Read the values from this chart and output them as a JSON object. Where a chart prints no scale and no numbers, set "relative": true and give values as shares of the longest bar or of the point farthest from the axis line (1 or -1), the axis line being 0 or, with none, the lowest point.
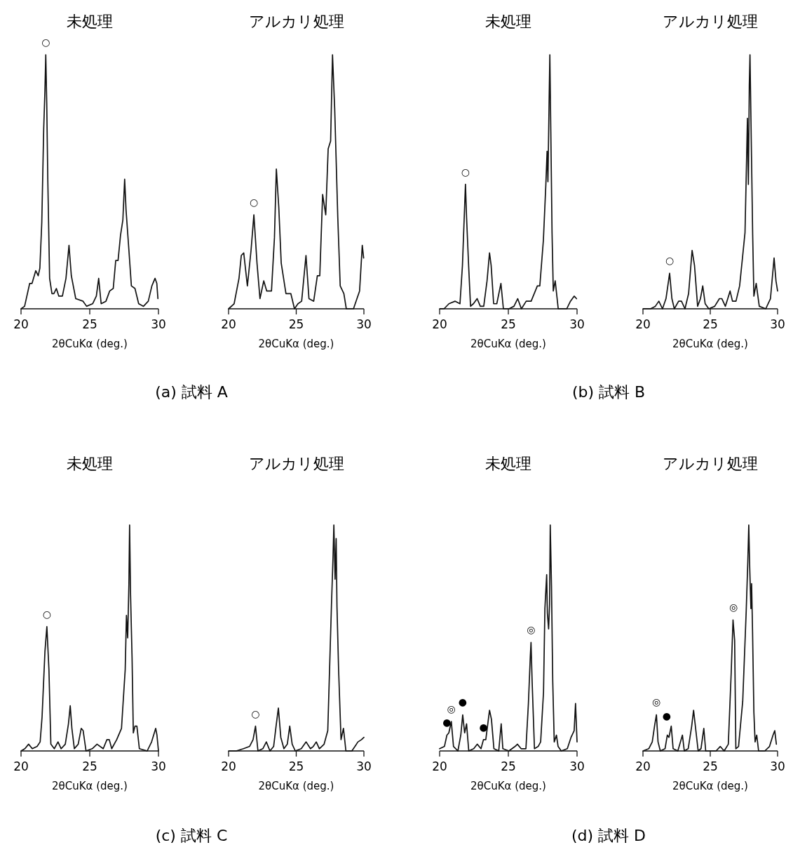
{
  "chart_data": [
    {
      "type": "line",
      "relative": true,
      "title": "未処理",
      "xlabel": "2θCuKα (deg.)",
      "xlim": [
        20,
        30
      ],
      "xticks": [
        20,
        25,
        30
      ],
      "x": [
        20,
        20.26,
        20.63,
        20.8,
        21.07,
        21.25,
        21.37,
        21.51,
        21.65,
        21.74,
        21.8,
        21.87,
        21.95,
        22.08,
        22.25,
        22.39,
        22.57,
        22.75,
        23.01,
        23.27,
        23.49,
        23.66,
        23.98,
        24.51,
        24.77,
        25.21,
        25.48,
        25.65,
        25.83,
        26.18,
        26.45,
        26.71,
        26.89,
        27.06,
        27.24,
        27.41,
        27.54,
        27.64,
        27.85,
        28.03,
        28.29,
        28.56,
        28.91,
        29.26,
        29.52,
        29.75,
        29.88,
        29.96
      ],
      "values": [
        0,
        0.01,
        0.1,
        0.1,
        0.15,
        0.13,
        0.16,
        0.34,
        0.71,
        0.86,
        1,
        0.81,
        0.5,
        0.12,
        0.06,
        0.06,
        0.08,
        0.05,
        0.05,
        0.12,
        0.25,
        0.13,
        0.04,
        0.03,
        0.01,
        0.02,
        0.05,
        0.12,
        0.02,
        0.03,
        0.07,
        0.08,
        0.19,
        0.19,
        0.29,
        0.35,
        0.51,
        0.39,
        0.23,
        0.09,
        0.08,
        0.02,
        0.01,
        0.03,
        0.09,
        0.12,
        0.1,
        0.04
      ],
      "annotations": [
        "(a) 試料 A",
        {
          "text": "○",
          "x": 21.8,
          "y": 1
        }
      ]
    },
    {
      "type": "line",
      "relative": true,
      "title": "アルカリ処理",
      "xlabel": "2θCuKα (deg.)",
      "xlim": [
        20,
        30
      ],
      "xticks": [
        20,
        25,
        30
      ],
      "x": [
        20,
        20.41,
        20.77,
        20.94,
        21.12,
        21.39,
        21.66,
        21.87,
        22.1,
        22.32,
        22.6,
        22.82,
        23.17,
        23.39,
        23.53,
        23.71,
        23.89,
        24.24,
        24.6,
        24.87,
        25.13,
        25.4,
        25.72,
        25.94,
        26.29,
        26.56,
        26.74,
        26.95,
        27.18,
        27.36,
        27.54,
        27.68,
        27.84,
        28.07,
        28.25,
        28.52,
        28.7,
        29.23,
        29.68,
        29.88,
        29.98
      ],
      "values": [
        0,
        0.02,
        0.12,
        0.21,
        0.22,
        0.09,
        0.23,
        0.37,
        0.18,
        0.04,
        0.11,
        0.07,
        0.07,
        0.28,
        0.55,
        0.4,
        0.18,
        0.06,
        0.06,
        0,
        0.02,
        0.03,
        0.21,
        0.04,
        0.03,
        0.13,
        0.13,
        0.45,
        0.37,
        0.63,
        0.66,
        1,
        0.79,
        0.36,
        0.09,
        0.06,
        0,
        0,
        0.07,
        0.25,
        0.2
      ],
      "annotations": [
        {
          "text": "○",
          "x": 21.87,
          "y": 0.37
        }
      ]
    },
    {
      "type": "line",
      "relative": true,
      "title": "未処理",
      "xlabel": "2θCuKα (deg.)",
      "xlim": [
        20,
        30
      ],
      "xticks": [
        20,
        25,
        30
      ],
      "x": [
        20,
        20.32,
        20.68,
        21.13,
        21.48,
        21.66,
        21.79,
        21.88,
        21.96,
        22.11,
        22.25,
        22.46,
        22.73,
        22.96,
        23.21,
        23.45,
        23.63,
        23.75,
        23.93,
        24.16,
        24.46,
        24.64,
        25.05,
        25.41,
        25.68,
        25.95,
        26.3,
        26.66,
        27.11,
        27.29,
        27.55,
        27.73,
        27.82,
        27.88,
        27.96,
        28.02,
        28.09,
        28.18,
        28.27,
        28.41,
        28.63,
        29.25,
        29.52,
        29.79,
        29.96
      ],
      "values": [
        0,
        0,
        0.02,
        0.03,
        0.02,
        0.17,
        0.36,
        0.49,
        0.36,
        0.17,
        0.01,
        0.02,
        0.04,
        0.01,
        0.01,
        0.11,
        0.22,
        0.17,
        0.02,
        0.02,
        0.1,
        0,
        0,
        0.01,
        0.04,
        0,
        0.03,
        0.03,
        0.09,
        0.09,
        0.27,
        0.49,
        0.62,
        0.5,
        0.79,
        1,
        0.7,
        0.3,
        0.07,
        0.11,
        0,
        0,
        0.03,
        0.05,
        0.04
      ],
      "annotations": [
        "(b) 試料 B",
        {
          "text": "○",
          "x": 21.88,
          "y": 0.49
        }
      ]
    },
    {
      "type": "line",
      "relative": true,
      "title": "アルカリ処理",
      "xlabel": "2θCuKα (deg.)",
      "xlim": [
        20,
        30
      ],
      "xticks": [
        20,
        25,
        30
      ],
      "x": [
        20,
        20.56,
        20.92,
        21.18,
        21.45,
        21.71,
        21.98,
        22.15,
        22.33,
        22.65,
        22.86,
        23.12,
        23.39,
        23.65,
        23.83,
        24.06,
        24.27,
        24.44,
        24.62,
        24.89,
        25.33,
        25.68,
        25.86,
        26.12,
        26.3,
        26.47,
        26.65,
        26.91,
        27.18,
        27.41,
        27.58,
        27.71,
        27.76,
        27.83,
        27.9,
        27.95,
        28.02,
        28.15,
        28.24,
        28.41,
        28.64,
        29.12,
        29.47,
        29.74,
        29.88,
        30
      ],
      "values": [
        0,
        0,
        0.01,
        0.03,
        0,
        0.04,
        0.14,
        0.04,
        0,
        0.03,
        0.03,
        0,
        0.06,
        0.23,
        0.17,
        0.01,
        0.04,
        0.09,
        0.02,
        0,
        0.01,
        0.04,
        0.04,
        0.01,
        0.04,
        0.07,
        0.03,
        0.03,
        0.09,
        0.21,
        0.3,
        0.62,
        0.75,
        0.49,
        0.88,
        1,
        0.75,
        0.29,
        0.05,
        0.1,
        0.01,
        0,
        0.04,
        0.2,
        0.11,
        0.07
      ],
      "annotations": [
        {
          "text": "○",
          "x": 21.98,
          "y": 0.14
        }
      ]
    },
    {
      "type": "line",
      "relative": true,
      "title": "未処理",
      "xlabel": "2θCuKα (deg.)",
      "xlim": [
        20,
        30
      ],
      "xticks": [
        20,
        25,
        30
      ],
      "x": [
        20,
        20.28,
        20.55,
        20.82,
        21.17,
        21.39,
        21.53,
        21.74,
        21.88,
        22.03,
        22.17,
        22.42,
        22.69,
        22.92,
        23.22,
        23.45,
        23.58,
        23.7,
        23.88,
        24.16,
        24.38,
        24.52,
        24.73,
        25.18,
        25.53,
        25.98,
        26.25,
        26.42,
        26.6,
        26.96,
        27.31,
        27.58,
        27.67,
        27.76,
        27.85,
        27.9,
        27.97,
        28.08,
        28.17,
        28.29,
        28.43,
        28.61,
        29.18,
        29.5,
        29.8,
        29.89,
        30
      ],
      "values": [
        0,
        0.01,
        0.03,
        0.01,
        0.02,
        0.04,
        0.15,
        0.44,
        0.55,
        0.36,
        0.03,
        0.01,
        0.04,
        0.01,
        0.03,
        0.12,
        0.2,
        0.1,
        0.01,
        0.03,
        0.1,
        0.09,
        0,
        0.01,
        0.03,
        0.01,
        0.05,
        0.05,
        0.01,
        0.05,
        0.1,
        0.36,
        0.6,
        0.5,
        0.74,
        1,
        0.69,
        0.41,
        0.08,
        0.11,
        0.11,
        0.01,
        0,
        0.04,
        0.1,
        0.07,
        0
      ],
      "annotations": [
        "(c) 試料 C",
        {
          "text": "○",
          "x": 21.88,
          "y": 0.55
        }
      ]
    },
    {
      "type": "line",
      "relative": true,
      "title": "アルカリ処理",
      "xlabel": "2θCuKα (deg.)",
      "xlim": [
        20,
        30
      ],
      "xticks": [
        20,
        25,
        30
      ],
      "x": [
        20,
        20.57,
        21.1,
        21.55,
        21.81,
        21.99,
        22.17,
        22.53,
        22.79,
        23.06,
        23.33,
        23.51,
        23.68,
        23.86,
        24.09,
        24.34,
        24.52,
        24.7,
        24.93,
        25.37,
        25.73,
        26.05,
        26.26,
        26.48,
        26.71,
        27.06,
        27.33,
        27.6,
        27.72,
        27.78,
        27.87,
        27.95,
        28.01,
        28.13,
        28.31,
        28.49,
        28.67,
        29.11,
        29.56,
        29.82,
        30
      ],
      "values": [
        0,
        0,
        0.01,
        0.02,
        0.05,
        0.11,
        0,
        0.01,
        0.04,
        0,
        0.02,
        0.11,
        0.19,
        0.06,
        0.01,
        0.03,
        0.11,
        0.03,
        0,
        0.01,
        0.04,
        0.01,
        0.02,
        0.04,
        0.01,
        0.03,
        0.09,
        0.64,
        0.86,
        1,
        0.76,
        0.94,
        0.64,
        0.36,
        0.05,
        0.1,
        0,
        0,
        0.04,
        0.05,
        0.06
      ],
      "annotations": [
        {
          "text": "○",
          "x": 21.99,
          "y": 0.11
        }
      ]
    },
    {
      "type": "line",
      "relative": true,
      "title": "未処理",
      "xlabel": "2θCuKα (deg.)",
      "xlim": [
        20,
        30
      ],
      "xticks": [
        20,
        25,
        30
      ],
      "x": [
        20,
        20.35,
        20.53,
        20.67,
        20.85,
        21.01,
        21.33,
        21.54,
        21.68,
        21.82,
        21.96,
        22.12,
        22.48,
        22.74,
        23.01,
        23.19,
        23.36,
        23.63,
        23.77,
        23.95,
        24.3,
        24.48,
        24.6,
        25.04,
        25.49,
        25.66,
        25.93,
        26.28,
        26.46,
        26.6,
        26.65,
        26.73,
        26.9,
        27.17,
        27.35,
        27.56,
        27.66,
        27.79,
        27.84,
        27.93,
        28,
        28.05,
        28.14,
        28.23,
        28.34,
        28.5,
        28.62,
        28.85,
        29.29,
        29.56,
        29.79,
        29.89,
        30
      ],
      "values": [
        0.01,
        0.02,
        0.07,
        0.08,
        0.13,
        0.02,
        0,
        0.07,
        0.16,
        0.08,
        0.12,
        0,
        0.01,
        0.03,
        0.01,
        0.05,
        0.05,
        0.18,
        0.14,
        0.01,
        0,
        0.12,
        0.01,
        0,
        0.02,
        0.03,
        0.01,
        0.01,
        0.21,
        0.42,
        0.48,
        0.31,
        0.01,
        0.02,
        0.04,
        0.26,
        0.63,
        0.78,
        0.61,
        0.54,
        0.65,
        1,
        0.73,
        0.31,
        0.04,
        0.07,
        0.02,
        0,
        0.01,
        0.06,
        0.09,
        0.21,
        0.04
      ],
      "annotations": [
        "(d) 試料 D",
        {
          "text": "●",
          "x": 20.53,
          "y": 0.07
        },
        {
          "text": "◎",
          "x": 20.85,
          "y": 0.13
        },
        {
          "text": "●",
          "x": 21.68,
          "y": 0.16
        },
        {
          "text": "●",
          "x": 23.19,
          "y": 0.05
        },
        {
          "text": "◎",
          "x": 26.65,
          "y": 0.48
        }
      ]
    },
    {
      "type": "line",
      "relative": true,
      "title": "アルカリ処理",
      "xlabel": "2θCuKα (deg.)",
      "xlim": [
        20,
        30
      ],
      "xticks": [
        20,
        25,
        30
      ],
      "x": [
        20,
        20.43,
        20.69,
        20.86,
        21,
        21.12,
        21.29,
        21.64,
        21.81,
        21.93,
        22.1,
        22.24,
        22.59,
        22.93,
        23.07,
        23.36,
        23.62,
        23.76,
        23.93,
        24.1,
        24.31,
        24.52,
        24.66,
        25.09,
        25.43,
        25.74,
        26.03,
        26.34,
        26.55,
        26.69,
        26.81,
        26.9,
        27.1,
        27.41,
        27.67,
        27.79,
        27.86,
        27.93,
        28.02,
        28.07,
        28.14,
        28.24,
        28.33,
        28.45,
        28.59,
        29.05,
        29.4,
        29.66,
        29.79,
        29.91
      ],
      "values": [
        0,
        0.01,
        0.04,
        0.11,
        0.16,
        0.04,
        0,
        0.01,
        0.07,
        0.06,
        0.11,
        0.01,
        0,
        0.07,
        0,
        0.01,
        0.11,
        0.18,
        0.09,
        0,
        0.01,
        0.1,
        0,
        0,
        0,
        0.02,
        0,
        0.03,
        0.34,
        0.58,
        0.49,
        0.01,
        0.02,
        0.22,
        0.62,
        0.84,
        1,
        0.81,
        0.63,
        0.74,
        0.53,
        0.17,
        0.04,
        0.07,
        0,
        0,
        0.02,
        0.07,
        0.09,
        0.03
      ],
      "annotations": [
        {
          "text": "◎",
          "x": 21,
          "y": 0.16
        },
        {
          "text": "●",
          "x": 21.76,
          "y": 0.1
        },
        {
          "text": "◎",
          "x": 26.72,
          "y": 0.58
        }
      ]
    }
  ]
}
